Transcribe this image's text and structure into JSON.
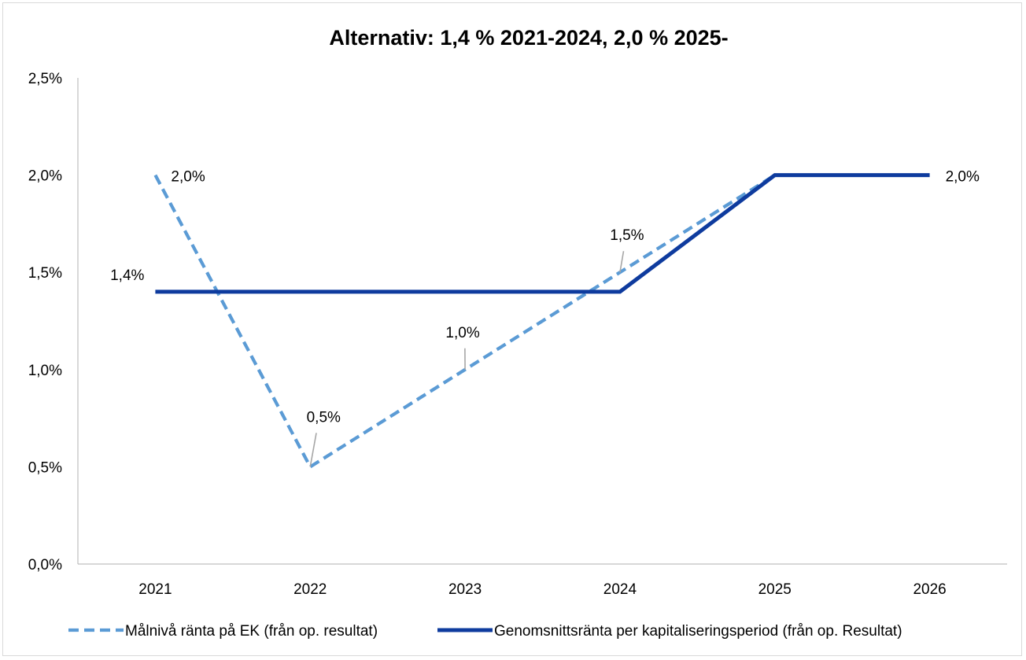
{
  "chart_data": {
    "type": "line",
    "title": "Alternativ: 1,4 % 2021-2024,  2,0 % 2025-",
    "categories": [
      "2021",
      "2022",
      "2023",
      "2024",
      "2025",
      "2026"
    ],
    "ylim": [
      0,
      2.5
    ],
    "yticks": [
      0,
      0.5,
      1.0,
      1.5,
      2.0,
      2.5
    ],
    "ytick_labels": [
      "0,0%",
      "0,5%",
      "1,0%",
      "1,5%",
      "2,0%",
      "2,5%"
    ],
    "grid": false,
    "legend_position": "bottom",
    "series": [
      {
        "name": "Målnivå ränta på EK (från op. resultat)",
        "style": "dashed",
        "color": "#5b9bd5",
        "values": [
          2.0,
          0.5,
          1.0,
          1.5,
          2.0,
          null
        ],
        "data_labels": [
          "2,0%",
          "0,5%",
          "1,0%",
          "1,5%",
          null,
          null
        ]
      },
      {
        "name": "Genomsnittsränta per kapitaliseringsperiod (från op. Resultat)",
        "style": "solid",
        "color": "#0e3b9e",
        "values": [
          1.4,
          1.4,
          1.4,
          1.4,
          2.0,
          2.0
        ],
        "data_labels": [
          "1,4%",
          null,
          null,
          null,
          null,
          "2,0%"
        ]
      }
    ]
  }
}
